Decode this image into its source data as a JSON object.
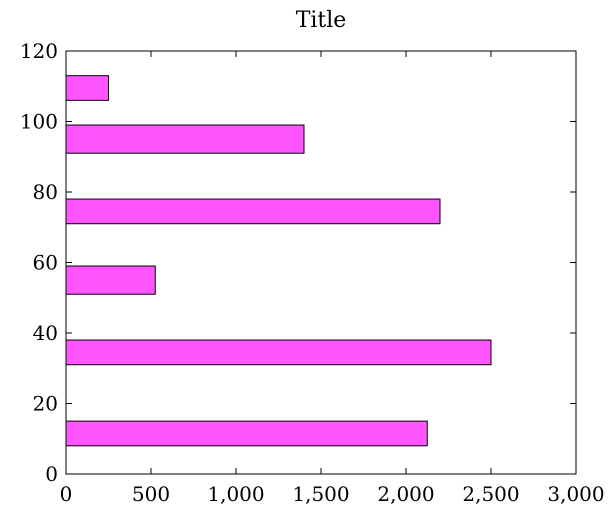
{
  "chart_data": {
    "type": "bar",
    "orientation": "horizontal",
    "title": "Title",
    "xlabel": "",
    "ylabel": "",
    "xlim": [
      0,
      3000
    ],
    "ylim": [
      0,
      120
    ],
    "x_ticks": [
      0,
      500,
      1000,
      1500,
      2000,
      2500,
      3000
    ],
    "x_tick_labels": [
      "0",
      "500",
      "1,000",
      "1,500",
      "2,000",
      "2,500",
      "3,000"
    ],
    "y_ticks": [
      0,
      20,
      40,
      60,
      80,
      100,
      120
    ],
    "y_tick_labels": [
      "0",
      "20",
      "40",
      "60",
      "80",
      "100",
      "120"
    ],
    "bar_color": "#ff55ff",
    "grid": false,
    "bars": [
      {
        "y_start": 8,
        "y_end": 15,
        "value": 2125
      },
      {
        "y_start": 31,
        "y_end": 38,
        "value": 2500
      },
      {
        "y_start": 51,
        "y_end": 59,
        "value": 525
      },
      {
        "y_start": 71,
        "y_end": 78,
        "value": 2200
      },
      {
        "y_start": 91,
        "y_end": 99,
        "value": 1400
      },
      {
        "y_start": 106,
        "y_end": 113,
        "value": 250
      }
    ]
  }
}
